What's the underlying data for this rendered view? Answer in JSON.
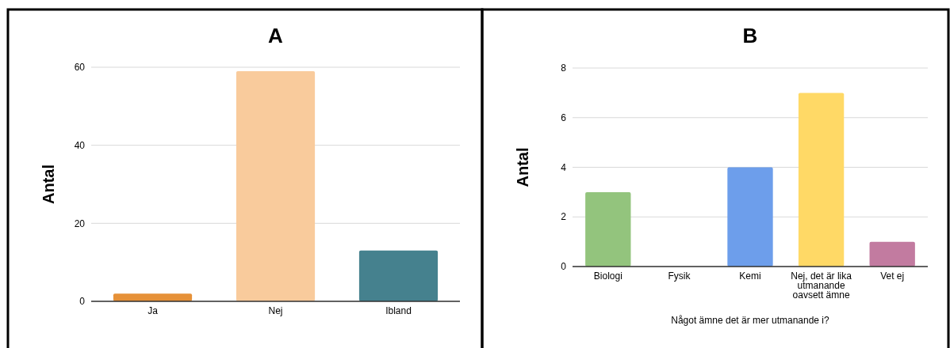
{
  "chart_data": [
    {
      "type": "bar",
      "title": "A",
      "ylabel": "Antal",
      "categories": [
        "Ja",
        "Nej",
        "Ibland"
      ],
      "values": [
        2,
        59,
        13
      ],
      "colors": [
        "#e69138",
        "#f9cb9c",
        "#45818e"
      ],
      "ylim": [
        0,
        60
      ],
      "yticks": [
        0,
        20,
        40,
        60
      ],
      "grid": "y"
    },
    {
      "type": "bar",
      "title": "B",
      "ylabel": "Antal",
      "xlabel": "Något ämne det är mer utmanande i?",
      "categories": [
        "Biologi",
        "Fysik",
        "Kemi",
        "Nej, det är lika utmanande oavsett ämne",
        "Vet ej"
      ],
      "values": [
        3,
        0,
        4,
        7,
        1
      ],
      "colors": [
        "#93c47d",
        "#6d9eeb",
        "#6d9eeb",
        "#ffd966",
        "#c27ba0"
      ],
      "ylim": [
        0,
        8
      ],
      "yticks": [
        0,
        2,
        4,
        6,
        8
      ],
      "grid": "y"
    }
  ]
}
